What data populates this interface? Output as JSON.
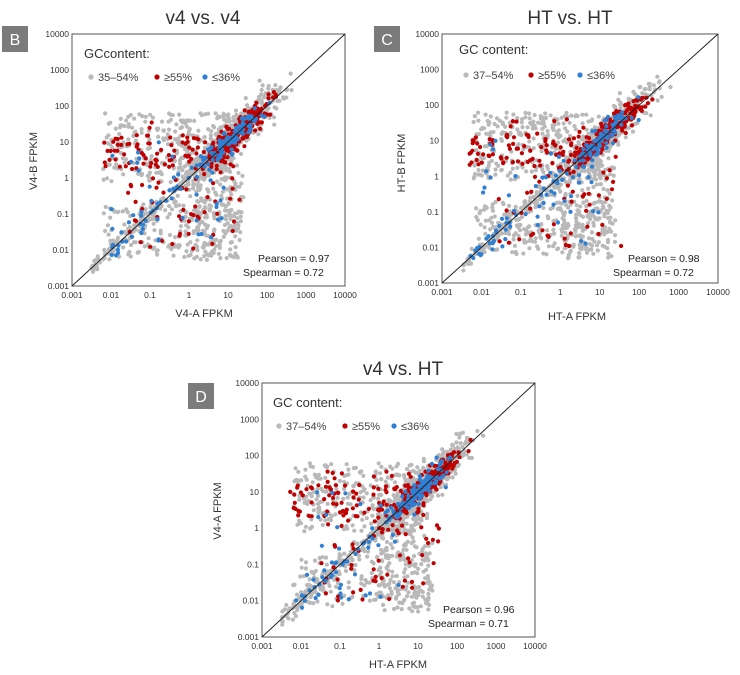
{
  "colors": {
    "gc_mid": "#b9b9b9",
    "gc_high": "#c00000",
    "gc_low": "#2f7fd3",
    "badge": "#7b7b7b",
    "frame": "#555555"
  },
  "chart_data": [
    {
      "type": "scatter",
      "panel": "B",
      "title": "v4 vs. v4",
      "xlabel": "V4-A FPKM",
      "ylabel": "V4-B FPKM",
      "xscale": "log",
      "yscale": "log",
      "xlim": [
        0.001,
        10000
      ],
      "ylim": [
        0.001,
        10000
      ],
      "tick_labels": [
        "0.001",
        "0.01",
        "0.1",
        "1",
        "10",
        "100",
        "1000",
        "10000"
      ],
      "legend_title": "GCcontent:",
      "legend": [
        {
          "marker": "•",
          "label": "35–54%",
          "group": "mid"
        },
        {
          "marker": "•",
          "label": "≥55%",
          "group": "high"
        },
        {
          "marker": "•",
          "label": "≤36%",
          "group": "low"
        }
      ],
      "stats": {
        "pearson": "Pearson = 0.97",
        "spearman": "Spearman = 0.72"
      },
      "diagonal": true,
      "series": [
        {
          "name": "35–54%",
          "group": "mid",
          "count": 1400,
          "seed": 11
        },
        {
          "name": "≥55%",
          "group": "high",
          "count": 380,
          "seed": 12
        },
        {
          "name": "≤36%",
          "group": "low",
          "count": 170,
          "seed": 13
        }
      ]
    },
    {
      "type": "scatter",
      "panel": "C",
      "title": "HT vs. HT",
      "xlabel": "HT-A FPKM",
      "ylabel": "HT-B FPKM",
      "xscale": "log",
      "yscale": "log",
      "xlim": [
        0.001,
        10000
      ],
      "ylim": [
        0.001,
        10000
      ],
      "tick_labels": [
        "0.001",
        "0.01",
        "0.1",
        "1",
        "10",
        "100",
        "1000",
        "10000"
      ],
      "legend_title": "GC content:",
      "legend": [
        {
          "marker": "•",
          "label": "37–54%",
          "group": "mid"
        },
        {
          "marker": "•",
          "label": "≥55%",
          "group": "high"
        },
        {
          "marker": "•",
          "label": "≤36%",
          "group": "low"
        }
      ],
      "stats": {
        "pearson": "Pearson = 0.98",
        "spearman": "Spearman = 0.72"
      },
      "diagonal": true,
      "series": [
        {
          "name": "37–54%",
          "group": "mid",
          "count": 1400,
          "seed": 21
        },
        {
          "name": "≥55%",
          "group": "high",
          "count": 380,
          "seed": 22
        },
        {
          "name": "≤36%",
          "group": "low",
          "count": 170,
          "seed": 23
        }
      ]
    },
    {
      "type": "scatter",
      "panel": "D",
      "title": "v4 vs. HT",
      "xlabel": "HT-A FPKM",
      "ylabel": "V4-A FPKM",
      "xscale": "log",
      "yscale": "log",
      "xlim": [
        0.001,
        10000
      ],
      "ylim": [
        0.001,
        10000
      ],
      "tick_labels": [
        "0.001",
        "0.01",
        "0.1",
        "1",
        "10",
        "100",
        "1000",
        "10000"
      ],
      "legend_title": "GC content:",
      "legend": [
        {
          "marker": "•",
          "label": "37–54%",
          "group": "mid"
        },
        {
          "marker": "•",
          "label": "≥55%",
          "group": "high"
        },
        {
          "marker": "•",
          "label": "≤36%",
          "group": "low"
        }
      ],
      "stats": {
        "pearson": "Pearson = 0.96",
        "spearman": "Spearman = 0.71"
      },
      "diagonal": true,
      "series": [
        {
          "name": "37–54%",
          "group": "mid",
          "count": 1400,
          "seed": 31
        },
        {
          "name": "≥55%",
          "group": "high",
          "count": 380,
          "seed": 32
        },
        {
          "name": "≤36%",
          "group": "low",
          "count": 170,
          "seed": 33
        }
      ]
    }
  ]
}
